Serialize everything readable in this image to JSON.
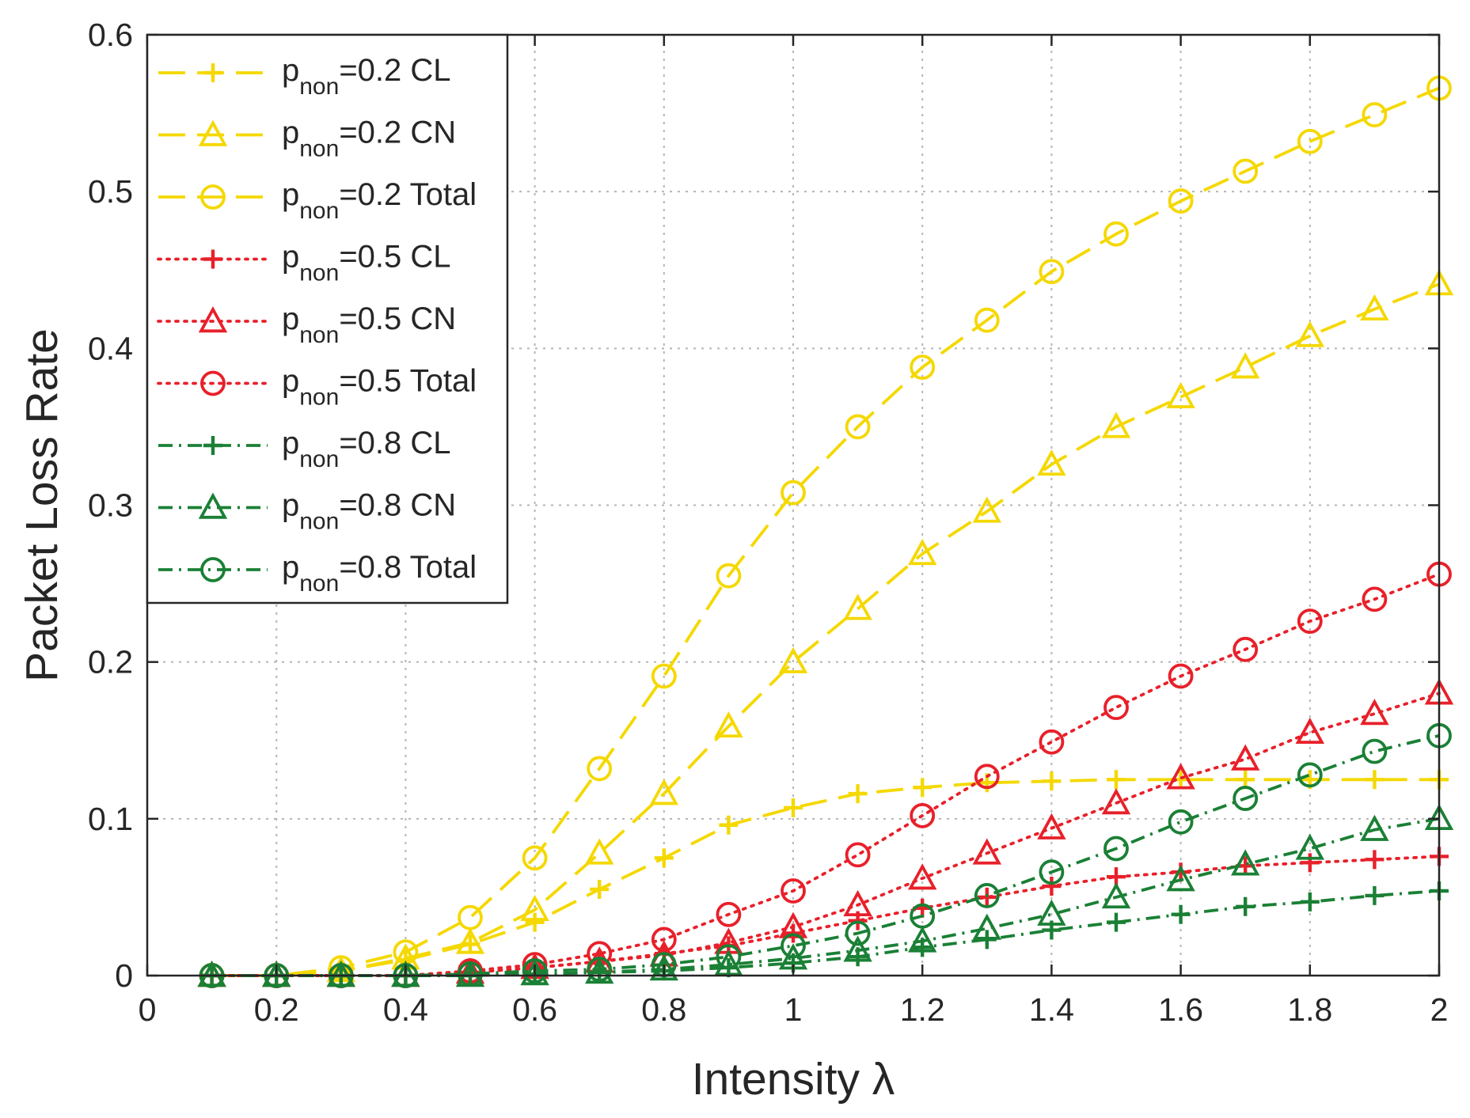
{
  "chart_data": {
    "type": "line",
    "xlabel": "Intensity λ",
    "ylabel": "Packet Loss Rate",
    "xlim": [
      0,
      2
    ],
    "ylim": [
      0,
      0.6
    ],
    "xticks": [
      0,
      0.2,
      0.4,
      0.6,
      0.8,
      1,
      1.2,
      1.4,
      1.6,
      1.8,
      2
    ],
    "yticks": [
      0,
      0.1,
      0.2,
      0.3,
      0.4,
      0.5,
      0.6
    ],
    "xtick_labels": [
      "0",
      "0.2",
      "0.4",
      "0.6",
      "0.8",
      "1",
      "1.2",
      "1.4",
      "1.6",
      "1.8",
      "2"
    ],
    "ytick_labels": [
      "0",
      "0.1",
      "0.2",
      "0.3",
      "0.4",
      "0.5",
      "0.6"
    ],
    "grid": true,
    "legend_position": "top-left",
    "x": [
      0.1,
      0.2,
      0.3,
      0.4,
      0.5,
      0.6,
      0.7,
      0.8,
      0.9,
      1.0,
      1.1,
      1.2,
      1.3,
      1.4,
      1.5,
      1.6,
      1.7,
      1.8,
      1.9,
      2.0
    ],
    "series": [
      {
        "name": "p_non=0.2 CL",
        "label_main": "p",
        "label_sub": "non",
        "label_rest": "=0.2 CL",
        "color": "#F5D800",
        "dash": "long-dash",
        "marker": "plus",
        "values": [
          0,
          0,
          0.003,
          0.01,
          0.02,
          0.034,
          0.055,
          0.075,
          0.096,
          0.107,
          0.116,
          0.12,
          0.123,
          0.124,
          0.125,
          0.125,
          0.125,
          0.125,
          0.125,
          0.125
        ]
      },
      {
        "name": "p_non=0.2 CN",
        "label_main": "p",
        "label_sub": "non",
        "label_rest": "=0.2 CN",
        "color": "#F5D800",
        "dash": "long-dash",
        "marker": "triangle",
        "values": [
          0,
          0,
          0.003,
          0.011,
          0.021,
          0.042,
          0.078,
          0.116,
          0.159,
          0.2,
          0.234,
          0.269,
          0.296,
          0.326,
          0.35,
          0.369,
          0.388,
          0.408,
          0.425,
          0.441
        ]
      },
      {
        "name": "p_non=0.2 Total",
        "label_main": "p",
        "label_sub": "non",
        "label_rest": "=0.2 Total",
        "color": "#F5D800",
        "dash": "long-dash",
        "marker": "circle",
        "values": [
          0,
          0,
          0.005,
          0.015,
          0.037,
          0.075,
          0.132,
          0.191,
          0.255,
          0.308,
          0.35,
          0.388,
          0.418,
          0.449,
          0.473,
          0.494,
          0.513,
          0.532,
          0.549,
          0.566
        ]
      },
      {
        "name": "p_non=0.5 CL",
        "label_main": "p",
        "label_sub": "non",
        "label_rest": "=0.5 CL",
        "color": "#E8202A",
        "dash": "dotted",
        "marker": "plus",
        "values": [
          0,
          0,
          0,
          0,
          0.002,
          0.005,
          0.009,
          0.014,
          0.019,
          0.027,
          0.035,
          0.043,
          0.05,
          0.057,
          0.063,
          0.066,
          0.07,
          0.072,
          0.074,
          0.076
        ]
      },
      {
        "name": "p_non=0.5 CN",
        "label_main": "p",
        "label_sub": "non",
        "label_rest": "=0.5 CN",
        "color": "#E8202A",
        "dash": "dotted",
        "marker": "triangle",
        "values": [
          0,
          0,
          0,
          0,
          0.002,
          0.005,
          0.009,
          0.013,
          0.021,
          0.031,
          0.045,
          0.062,
          0.078,
          0.094,
          0.11,
          0.126,
          0.138,
          0.155,
          0.167,
          0.18
        ]
      },
      {
        "name": "p_non=0.5 Total",
        "label_main": "p",
        "label_sub": "non",
        "label_rest": "=0.5 Total",
        "color": "#E8202A",
        "dash": "dotted",
        "marker": "circle",
        "values": [
          0,
          0,
          0,
          0,
          0.003,
          0.007,
          0.014,
          0.023,
          0.039,
          0.054,
          0.077,
          0.102,
          0.127,
          0.149,
          0.171,
          0.191,
          0.208,
          0.226,
          0.24,
          0.256
        ]
      },
      {
        "name": "p_non=0.8 CL",
        "label_main": "p",
        "label_sub": "non",
        "label_rest": "=0.8 CL",
        "color": "#1A8035",
        "dash": "dash-dot",
        "marker": "plus",
        "values": [
          0,
          0,
          0,
          0,
          0,
          0.001,
          0.002,
          0.003,
          0.005,
          0.008,
          0.012,
          0.018,
          0.023,
          0.029,
          0.034,
          0.039,
          0.044,
          0.047,
          0.051,
          0.054
        ]
      },
      {
        "name": "p_non=0.8 CN",
        "label_main": "p",
        "label_sub": "non",
        "label_rest": "=0.8 CN",
        "color": "#1A8035",
        "dash": "dash-dot",
        "marker": "triangle",
        "values": [
          0,
          0,
          0,
          0,
          0,
          0.001,
          0.002,
          0.004,
          0.007,
          0.011,
          0.016,
          0.022,
          0.03,
          0.039,
          0.05,
          0.061,
          0.071,
          0.081,
          0.093,
          0.1
        ]
      },
      {
        "name": "p_non=0.8 Total",
        "label_main": "p",
        "label_sub": "non",
        "label_rest": "=0.8 Total",
        "color": "#1A8035",
        "dash": "dash-dot",
        "marker": "circle",
        "values": [
          0,
          0,
          0,
          0,
          0.001,
          0.003,
          0.004,
          0.007,
          0.012,
          0.019,
          0.027,
          0.038,
          0.051,
          0.066,
          0.081,
          0.098,
          0.113,
          0.128,
          0.143,
          0.153
        ]
      }
    ]
  }
}
